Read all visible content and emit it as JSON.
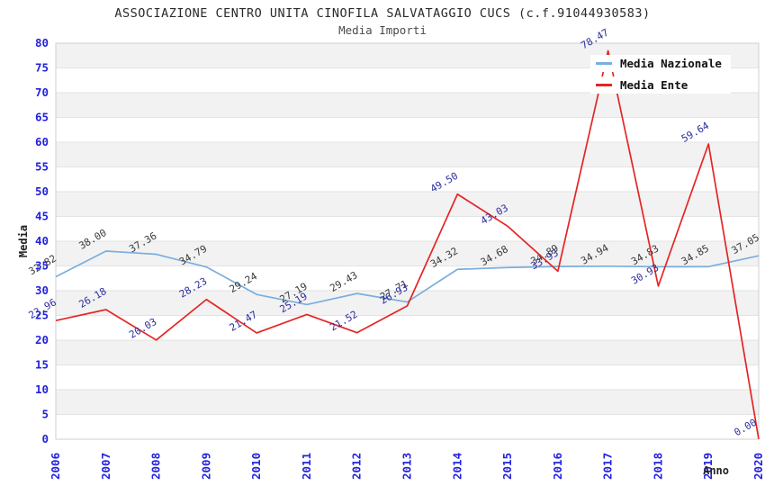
{
  "chart_data": {
    "type": "line",
    "title": "ASSOCIAZIONE CENTRO UNITA CINOFILA SALVATAGGIO CUCS (c.f.91044930583)",
    "subtitle": "Media Importi",
    "xlabel": "Anno",
    "ylabel": "Media",
    "ylim": [
      0,
      80
    ],
    "yticks": [
      0,
      5,
      10,
      15,
      20,
      25,
      30,
      35,
      40,
      45,
      50,
      55,
      60,
      65,
      70,
      75,
      80
    ],
    "categories": [
      "2006",
      "2007",
      "2008",
      "2009",
      "2010",
      "2011",
      "2012",
      "2013",
      "2014",
      "2015",
      "2016",
      "2017",
      "2018",
      "2019",
      "2020"
    ],
    "series": [
      {
        "name": "Media Nazionale",
        "color": "#7aaede",
        "label_color": "#3a3a3a",
        "values": [
          32.82,
          38.0,
          37.36,
          34.79,
          29.24,
          27.19,
          29.43,
          27.71,
          34.32,
          34.68,
          34.89,
          34.94,
          34.83,
          34.85,
          37.05
        ]
      },
      {
        "name": "Media Ente",
        "color": "#e42525",
        "label_color": "#2d2da0",
        "values": [
          23.96,
          26.18,
          20.03,
          28.23,
          21.47,
          25.19,
          21.52,
          26.93,
          49.5,
          43.03,
          33.93,
          78.47,
          30.93,
          59.64,
          0.0
        ]
      }
    ],
    "legend_position": "top-right",
    "grid": "horizontal-bands",
    "colors": {
      "tick_label": "#2222dd",
      "axis_title": "#222222",
      "band_gray": "#f2f2f2",
      "band_white": "#ffffff",
      "gridline": "#e3e3e3",
      "plot_border": "#cfcfcf"
    }
  }
}
